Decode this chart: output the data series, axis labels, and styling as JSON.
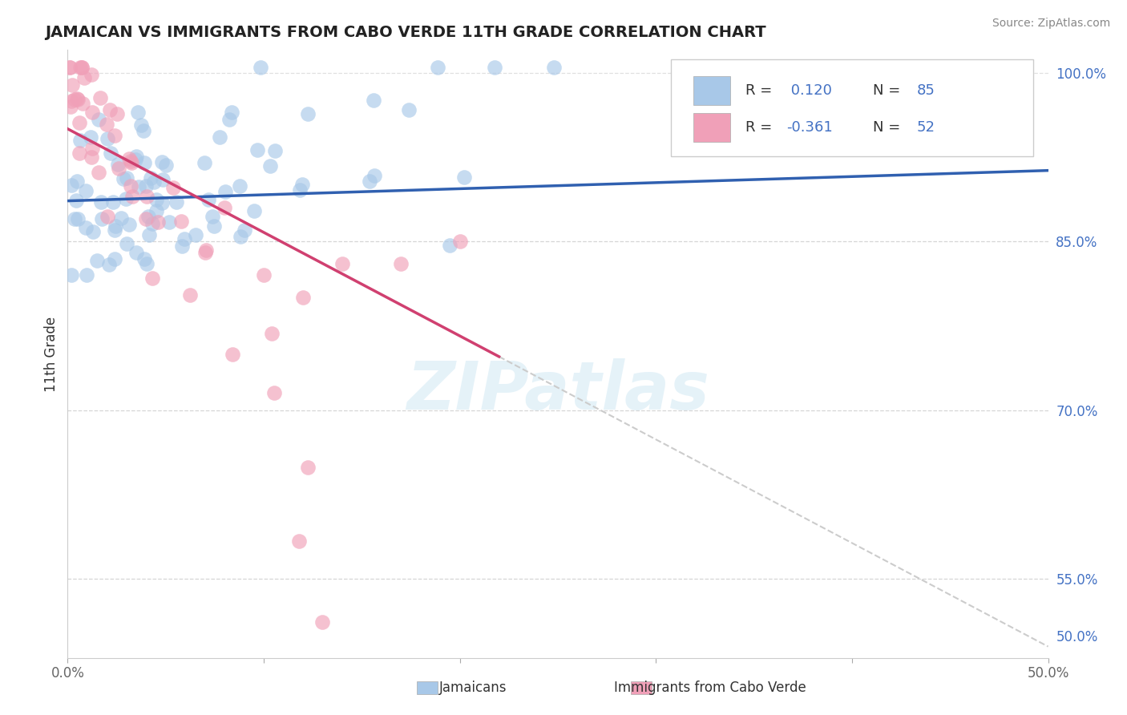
{
  "title": "JAMAICAN VS IMMIGRANTS FROM CABO VERDE 11TH GRADE CORRELATION CHART",
  "source": "Source: ZipAtlas.com",
  "xlabel_jamaicans": "Jamaicans",
  "xlabel_caboverde": "Immigrants from Cabo Verde",
  "ylabel": "11th Grade",
  "xlim": [
    0.0,
    0.5
  ],
  "ylim": [
    0.48,
    1.02
  ],
  "xtick_vals": [
    0.0,
    0.1,
    0.2,
    0.3,
    0.4,
    0.5
  ],
  "xtick_labels": [
    "0.0%",
    "",
    "",
    "",
    "",
    "50.0%"
  ],
  "ytick_vals": [
    0.5,
    0.55,
    0.7,
    0.85,
    1.0
  ],
  "ytick_labels": [
    "50.0%",
    "55.0%",
    "70.0%",
    "85.0%",
    "100.0%"
  ],
  "r_jamaican": 0.12,
  "n_jamaican": 85,
  "r_caboverde": -0.361,
  "n_caboverde": 52,
  "color_jamaican": "#a8c8e8",
  "color_caboverde": "#f0a0b8",
  "color_line_jamaican": "#3060b0",
  "color_line_caboverde": "#d04070",
  "color_dashed_line": "#cccccc",
  "color_grid": "#dddddd",
  "color_ytick": "#4472c4",
  "color_xtick": "#666666",
  "watermark_text": "ZIPatlas",
  "watermark_color": "#d0e8f4",
  "background_color": "#ffffff",
  "line_j_x0": 0.0,
  "line_j_x1": 0.5,
  "line_j_y0": 0.886,
  "line_j_y1": 0.913,
  "line_c_x0": 0.0,
  "line_c_x1": 0.5,
  "line_c_y0": 0.95,
  "line_c_y1": 0.49,
  "line_c_solid_end": 0.22
}
